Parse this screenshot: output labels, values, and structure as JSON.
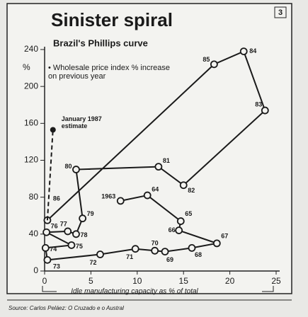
{
  "chart_data": {
    "type": "line",
    "title": "Sinister spiral",
    "subtitle": "Brazil's Phillips curve",
    "y_unit": "%",
    "x_label": "Idle manufacturing capacity as % of total",
    "source": "Source: Carlos Peláez: O Cruzado e o Austral",
    "badge": "3",
    "xlim": [
      0,
      25
    ],
    "xticks": [
      0,
      5,
      10,
      15,
      20,
      25
    ],
    "ylim": [
      0,
      240
    ],
    "yticks": [
      0,
      40,
      80,
      120,
      160,
      200,
      240
    ],
    "series": [
      {
        "name": "Wholesale price index % increase on previous year",
        "color": "#1a1a1a",
        "x": [
          8.2,
          11.1,
          14.7,
          14.5,
          18.6,
          15.9,
          13.0,
          11.9,
          9.8,
          6.0,
          0.3,
          0.1,
          2.9,
          0.2,
          2.5,
          3.4,
          4.1,
          3.4,
          12.3,
          15.0,
          23.8,
          21.5,
          18.3,
          0.3
        ],
        "values": [
          76,
          82,
          54,
          44,
          30,
          25,
          21,
          22,
          24,
          18,
          12,
          25,
          28,
          42,
          43,
          40,
          57,
          110,
          113,
          93,
          174,
          238,
          224,
          55
        ],
        "point_labels": [
          "1963",
          "64",
          "65",
          "66",
          "67",
          "68",
          "69",
          "70",
          "71",
          "72",
          "73",
          "74",
          "75",
          "76",
          "77",
          "78",
          "79",
          "80",
          "81",
          "82",
          "83",
          "84",
          "85",
          "86"
        ]
      }
    ],
    "annotation": {
      "text": "January 1987 estimate",
      "x": 0.9,
      "y": 153
    }
  }
}
